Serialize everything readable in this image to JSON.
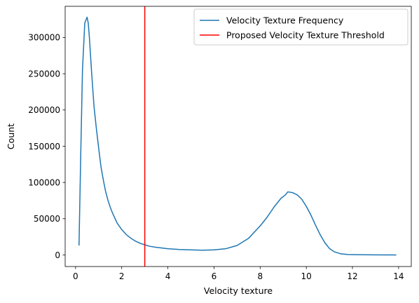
{
  "chart_data": {
    "type": "line",
    "xlabel": "Velocity texture",
    "ylabel": "Count",
    "xlim": [
      -0.45,
      14.55
    ],
    "ylim": [
      -16000,
      343000
    ],
    "xticks": [
      0,
      2,
      4,
      6,
      8,
      10,
      12,
      14
    ],
    "yticks": [
      0,
      50000,
      100000,
      150000,
      200000,
      250000,
      300000
    ],
    "grid": false,
    "legend_position": "top-right",
    "series": [
      {
        "name": "Velocity Texture Frequency",
        "color": "#1f77b4",
        "x": [
          0.15,
          0.22,
          0.3,
          0.4,
          0.5,
          0.55,
          0.6,
          0.7,
          0.8,
          0.9,
          1.0,
          1.1,
          1.2,
          1.3,
          1.4,
          1.5,
          1.6,
          1.8,
          2.0,
          2.2,
          2.4,
          2.6,
          2.8,
          3.0,
          3.2,
          3.5,
          4.0,
          4.5,
          5.0,
          5.5,
          6.0,
          6.5,
          7.0,
          7.5,
          8.0,
          8.3,
          8.6,
          8.9,
          9.1,
          9.2,
          9.4,
          9.6,
          9.8,
          10.0,
          10.2,
          10.4,
          10.6,
          10.8,
          11.0,
          11.2,
          11.5,
          11.8,
          12.2,
          13.0,
          13.9
        ],
        "y": [
          13000,
          130000,
          255000,
          320000,
          328000,
          320000,
          300000,
          250000,
          205000,
          175000,
          148000,
          122000,
          104000,
          88000,
          76000,
          66000,
          58000,
          44000,
          35000,
          28000,
          23000,
          19000,
          16000,
          14000,
          12000,
          10500,
          8500,
          7500,
          7000,
          6500,
          7000,
          8500,
          13000,
          23000,
          40000,
          52000,
          66000,
          78000,
          83000,
          87000,
          86000,
          83000,
          77000,
          67000,
          55000,
          41000,
          28000,
          17000,
          9000,
          4500,
          1500,
          600,
          300,
          100,
          0
        ]
      },
      {
        "name": "Proposed Velocity Texture Threshold",
        "color": "#ff0000",
        "type": "vline",
        "x": 3.0
      }
    ]
  }
}
